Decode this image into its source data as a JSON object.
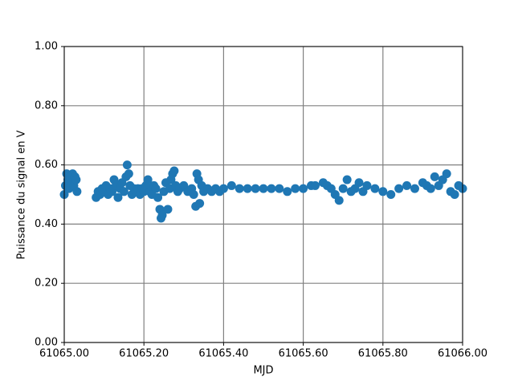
{
  "chart_data": {
    "type": "scatter",
    "xlabel": "MJD",
    "ylabel": "Puissance du signal en V",
    "color": "#1f77b4",
    "grid": true,
    "xlim": [
      61065.0,
      61066.0
    ],
    "ylim": [
      0,
      1
    ],
    "xticks": [
      {
        "value": 61065.0,
        "label": "61065.00"
      },
      {
        "value": 61065.2,
        "label": "61065.20"
      },
      {
        "value": 61065.4,
        "label": "61065.40"
      },
      {
        "value": 61065.6,
        "label": "61065.60"
      },
      {
        "value": 61065.8,
        "label": "61065.80"
      },
      {
        "value": 61066.0,
        "label": "61066.00"
      }
    ],
    "yticks": [
      {
        "value": 0,
        "label": "0.00"
      },
      {
        "value": 0.2,
        "label": "0.20"
      },
      {
        "value": 0.4,
        "label": "0.40"
      },
      {
        "value": 0.6,
        "label": "0.60"
      },
      {
        "value": 0.8,
        "label": "0.80"
      },
      {
        "value": 1,
        "label": "1.00"
      }
    ],
    "x": [
      61065.0,
      61065.003,
      61065.006,
      61065.009,
      61065.012,
      61065.015,
      61065.018,
      61065.021,
      61065.024,
      61065.027,
      61065.03,
      61065.032,
      61065.08,
      61065.085,
      61065.09,
      61065.095,
      61065.1,
      61065.105,
      61065.11,
      61065.115,
      61065.12,
      61065.125,
      61065.13,
      61065.135,
      61065.14,
      61065.145,
      61065.15,
      61065.155,
      61065.158,
      61065.162,
      61065.165,
      61065.17,
      61065.175,
      61065.18,
      61065.185,
      61065.19,
      61065.195,
      61065.2,
      61065.205,
      61065.21,
      61065.215,
      61065.22,
      61065.225,
      61065.23,
      61065.235,
      61065.24,
      61065.243,
      61065.246,
      61065.25,
      61065.255,
      61065.26,
      61065.265,
      61065.268,
      61065.272,
      61065.276,
      61065.28,
      61065.285,
      61065.29,
      61065.3,
      61065.31,
      61065.32,
      61065.325,
      61065.33,
      61065.333,
      61065.337,
      61065.34,
      61065.345,
      61065.35,
      61065.36,
      61065.37,
      61065.38,
      61065.39,
      61065.4,
      61065.42,
      61065.44,
      61065.46,
      61065.48,
      61065.5,
      61065.52,
      61065.54,
      61065.56,
      61065.58,
      61065.6,
      61065.62,
      61065.63,
      61065.65,
      61065.66,
      61065.67,
      61065.68,
      61065.69,
      61065.7,
      61065.71,
      61065.72,
      61065.73,
      61065.74,
      61065.75,
      61065.76,
      61065.78,
      61065.8,
      61065.82,
      61065.84,
      61065.86,
      61065.88,
      61065.9,
      61065.91,
      61065.92,
      61065.93,
      61065.94,
      61065.95,
      61065.96,
      61065.97,
      61065.98,
      61065.99,
      61066.0
    ],
    "values": [
      0.5,
      0.53,
      0.57,
      0.55,
      0.52,
      0.56,
      0.54,
      0.57,
      0.53,
      0.56,
      0.55,
      0.51,
      0.49,
      0.51,
      0.5,
      0.52,
      0.51,
      0.53,
      0.5,
      0.52,
      0.51,
      0.55,
      0.53,
      0.49,
      0.52,
      0.54,
      0.51,
      0.56,
      0.6,
      0.57,
      0.53,
      0.5,
      0.52,
      0.51,
      0.52,
      0.5,
      0.52,
      0.51,
      0.53,
      0.55,
      0.51,
      0.5,
      0.53,
      0.52,
      0.49,
      0.45,
      0.42,
      0.43,
      0.51,
      0.54,
      0.45,
      0.52,
      0.55,
      0.57,
      0.58,
      0.53,
      0.51,
      0.52,
      0.53,
      0.51,
      0.52,
      0.5,
      0.46,
      0.57,
      0.55,
      0.47,
      0.53,
      0.51,
      0.52,
      0.51,
      0.52,
      0.51,
      0.52,
      0.53,
      0.52,
      0.52,
      0.52,
      0.52,
      0.52,
      0.52,
      0.51,
      0.52,
      0.52,
      0.53,
      0.53,
      0.54,
      0.53,
      0.52,
      0.5,
      0.48,
      0.52,
      0.55,
      0.51,
      0.52,
      0.54,
      0.51,
      0.53,
      0.52,
      0.51,
      0.5,
      0.52,
      0.53,
      0.52,
      0.54,
      0.53,
      0.52,
      0.56,
      0.53,
      0.55,
      0.57,
      0.51,
      0.5,
      0.53,
      0.52
    ]
  }
}
